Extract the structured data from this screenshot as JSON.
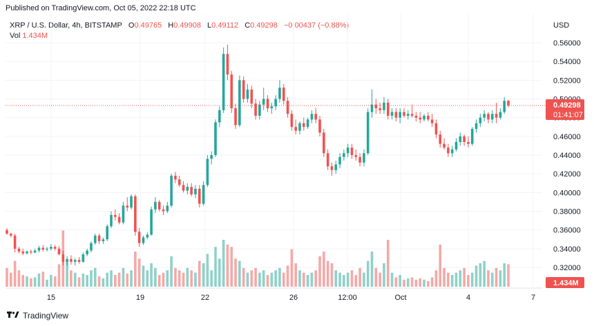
{
  "header": {
    "published": "Published on TradingView.com, Oct 05, 2022 22:18 UTC",
    "currency": "USD"
  },
  "legend": {
    "symbol": "XRP / U.S. Dollar, 4h, BITSTAMP",
    "o_label": "O",
    "o_value": "0.49765",
    "h_label": "H",
    "h_value": "0.49908",
    "l_label": "L",
    "l_value": "0.49112",
    "c_label": "C",
    "c_value": "0.49298",
    "change": "−0.00437 (−0.88%)",
    "vol_label": "Vol",
    "vol_value": "1.434M"
  },
  "badges": {
    "price": "0.49298",
    "countdown": "01:41:07",
    "volume": "1.434M"
  },
  "footer": {
    "brand": "TradingView",
    "logo_icon": "tradingview-logo-icon"
  },
  "colors": {
    "up": "#26a69a",
    "down": "#ef5350",
    "up_vol": "#8fd1c9",
    "down_vol": "#f4a9a7",
    "grid": "#f0f3fa"
  },
  "chart_data": {
    "type": "candlestick",
    "x_tick_labels": [
      "15",
      "19",
      "22",
      "26",
      "12:00",
      "Oct",
      "4",
      "7"
    ],
    "y_tick_labels": [
      "0.56000",
      "0.54000",
      "0.52000",
      "0.50000",
      "0.48000",
      "0.46000",
      "0.44000",
      "0.42000",
      "0.40000",
      "0.38000",
      "0.36000",
      "0.34000",
      "0.32000"
    ],
    "ylim": [
      0.3,
      0.57
    ],
    "last_price": 0.49298,
    "candles": [
      {
        "o": 0.36,
        "h": 0.362,
        "l": 0.355,
        "c": 0.356,
        "v": 0.4
      },
      {
        "o": 0.356,
        "h": 0.357,
        "l": 0.352,
        "c": 0.354,
        "v": 0.3
      },
      {
        "o": 0.354,
        "h": 0.356,
        "l": 0.336,
        "c": 0.34,
        "v": 0.55
      },
      {
        "o": 0.34,
        "h": 0.342,
        "l": 0.335,
        "c": 0.337,
        "v": 0.35
      },
      {
        "o": 0.337,
        "h": 0.34,
        "l": 0.333,
        "c": 0.335,
        "v": 0.25
      },
      {
        "o": 0.335,
        "h": 0.338,
        "l": 0.334,
        "c": 0.337,
        "v": 0.22
      },
      {
        "o": 0.337,
        "h": 0.339,
        "l": 0.334,
        "c": 0.336,
        "v": 0.18
      },
      {
        "o": 0.336,
        "h": 0.34,
        "l": 0.335,
        "c": 0.338,
        "v": 0.2
      },
      {
        "o": 0.338,
        "h": 0.343,
        "l": 0.336,
        "c": 0.341,
        "v": 0.28
      },
      {
        "o": 0.341,
        "h": 0.344,
        "l": 0.337,
        "c": 0.339,
        "v": 0.32
      },
      {
        "o": 0.339,
        "h": 0.342,
        "l": 0.337,
        "c": 0.34,
        "v": 0.15
      },
      {
        "o": 0.34,
        "h": 0.345,
        "l": 0.338,
        "c": 0.342,
        "v": 0.25
      },
      {
        "o": 0.342,
        "h": 0.344,
        "l": 0.338,
        "c": 0.34,
        "v": 0.22
      },
      {
        "o": 0.34,
        "h": 0.343,
        "l": 0.333,
        "c": 0.334,
        "v": 0.48
      },
      {
        "o": 0.334,
        "h": 0.338,
        "l": 0.322,
        "c": 0.326,
        "v": 1.2
      },
      {
        "o": 0.326,
        "h": 0.332,
        "l": 0.322,
        "c": 0.329,
        "v": 0.55
      },
      {
        "o": 0.329,
        "h": 0.333,
        "l": 0.323,
        "c": 0.326,
        "v": 0.35
      },
      {
        "o": 0.326,
        "h": 0.33,
        "l": 0.322,
        "c": 0.328,
        "v": 0.3
      },
      {
        "o": 0.328,
        "h": 0.331,
        "l": 0.324,
        "c": 0.326,
        "v": 0.2
      },
      {
        "o": 0.326,
        "h": 0.336,
        "l": 0.325,
        "c": 0.334,
        "v": 0.28
      },
      {
        "o": 0.334,
        "h": 0.34,
        "l": 0.332,
        "c": 0.338,
        "v": 0.25
      },
      {
        "o": 0.338,
        "h": 0.348,
        "l": 0.336,
        "c": 0.346,
        "v": 0.35
      },
      {
        "o": 0.346,
        "h": 0.356,
        "l": 0.344,
        "c": 0.354,
        "v": 0.4
      },
      {
        "o": 0.354,
        "h": 0.356,
        "l": 0.345,
        "c": 0.348,
        "v": 0.22
      },
      {
        "o": 0.348,
        "h": 0.352,
        "l": 0.345,
        "c": 0.35,
        "v": 0.18
      },
      {
        "o": 0.35,
        "h": 0.366,
        "l": 0.348,
        "c": 0.364,
        "v": 0.3
      },
      {
        "o": 0.364,
        "h": 0.38,
        "l": 0.362,
        "c": 0.376,
        "v": 0.35
      },
      {
        "o": 0.376,
        "h": 0.382,
        "l": 0.37,
        "c": 0.374,
        "v": 0.25
      },
      {
        "o": 0.374,
        "h": 0.378,
        "l": 0.366,
        "c": 0.368,
        "v": 0.3
      },
      {
        "o": 0.368,
        "h": 0.39,
        "l": 0.366,
        "c": 0.386,
        "v": 0.4
      },
      {
        "o": 0.386,
        "h": 0.395,
        "l": 0.38,
        "c": 0.384,
        "v": 0.28
      },
      {
        "o": 0.384,
        "h": 0.398,
        "l": 0.382,
        "c": 0.396,
        "v": 0.35
      },
      {
        "o": 0.396,
        "h": 0.398,
        "l": 0.354,
        "c": 0.358,
        "v": 0.75
      },
      {
        "o": 0.358,
        "h": 0.362,
        "l": 0.342,
        "c": 0.346,
        "v": 0.6
      },
      {
        "o": 0.346,
        "h": 0.354,
        "l": 0.344,
        "c": 0.352,
        "v": 0.45
      },
      {
        "o": 0.352,
        "h": 0.358,
        "l": 0.35,
        "c": 0.355,
        "v": 0.35
      },
      {
        "o": 0.355,
        "h": 0.385,
        "l": 0.354,
        "c": 0.382,
        "v": 0.5
      },
      {
        "o": 0.382,
        "h": 0.395,
        "l": 0.378,
        "c": 0.39,
        "v": 0.4
      },
      {
        "o": 0.39,
        "h": 0.392,
        "l": 0.38,
        "c": 0.382,
        "v": 0.25
      },
      {
        "o": 0.382,
        "h": 0.386,
        "l": 0.376,
        "c": 0.38,
        "v": 0.3
      },
      {
        "o": 0.38,
        "h": 0.39,
        "l": 0.378,
        "c": 0.386,
        "v": 0.35
      },
      {
        "o": 0.386,
        "h": 0.42,
        "l": 0.384,
        "c": 0.418,
        "v": 0.65
      },
      {
        "o": 0.418,
        "h": 0.422,
        "l": 0.41,
        "c": 0.414,
        "v": 0.4
      },
      {
        "o": 0.414,
        "h": 0.418,
        "l": 0.406,
        "c": 0.408,
        "v": 0.35
      },
      {
        "o": 0.408,
        "h": 0.412,
        "l": 0.4,
        "c": 0.402,
        "v": 0.3
      },
      {
        "o": 0.402,
        "h": 0.41,
        "l": 0.398,
        "c": 0.406,
        "v": 0.4
      },
      {
        "o": 0.406,
        "h": 0.41,
        "l": 0.396,
        "c": 0.398,
        "v": 0.35
      },
      {
        "o": 0.398,
        "h": 0.408,
        "l": 0.394,
        "c": 0.404,
        "v": 0.3
      },
      {
        "o": 0.404,
        "h": 0.408,
        "l": 0.384,
        "c": 0.388,
        "v": 0.55
      },
      {
        "o": 0.388,
        "h": 0.412,
        "l": 0.386,
        "c": 0.408,
        "v": 0.5
      },
      {
        "o": 0.408,
        "h": 0.44,
        "l": 0.406,
        "c": 0.436,
        "v": 0.7
      },
      {
        "o": 0.436,
        "h": 0.444,
        "l": 0.43,
        "c": 0.44,
        "v": 0.35
      },
      {
        "o": 0.44,
        "h": 0.478,
        "l": 0.438,
        "c": 0.475,
        "v": 0.85
      },
      {
        "o": 0.475,
        "h": 0.492,
        "l": 0.47,
        "c": 0.488,
        "v": 0.6
      },
      {
        "o": 0.488,
        "h": 0.555,
        "l": 0.485,
        "c": 0.548,
        "v": 1.0
      },
      {
        "o": 0.548,
        "h": 0.558,
        "l": 0.52,
        "c": 0.526,
        "v": 0.9
      },
      {
        "o": 0.526,
        "h": 0.53,
        "l": 0.485,
        "c": 0.49,
        "v": 0.85
      },
      {
        "o": 0.49,
        "h": 0.495,
        "l": 0.468,
        "c": 0.472,
        "v": 0.6
      },
      {
        "o": 0.472,
        "h": 0.525,
        "l": 0.47,
        "c": 0.52,
        "v": 0.55
      },
      {
        "o": 0.52,
        "h": 0.524,
        "l": 0.496,
        "c": 0.5,
        "v": 0.4
      },
      {
        "o": 0.5,
        "h": 0.516,
        "l": 0.496,
        "c": 0.51,
        "v": 0.3
      },
      {
        "o": 0.51,
        "h": 0.514,
        "l": 0.49,
        "c": 0.495,
        "v": 0.35
      },
      {
        "o": 0.495,
        "h": 0.5,
        "l": 0.478,
        "c": 0.482,
        "v": 0.4
      },
      {
        "o": 0.482,
        "h": 0.498,
        "l": 0.478,
        "c": 0.494,
        "v": 0.3
      },
      {
        "o": 0.494,
        "h": 0.512,
        "l": 0.488,
        "c": 0.5,
        "v": 0.35
      },
      {
        "o": 0.5,
        "h": 0.504,
        "l": 0.486,
        "c": 0.49,
        "v": 0.25
      },
      {
        "o": 0.49,
        "h": 0.496,
        "l": 0.484,
        "c": 0.492,
        "v": 0.3
      },
      {
        "o": 0.492,
        "h": 0.504,
        "l": 0.488,
        "c": 0.5,
        "v": 0.35
      },
      {
        "o": 0.5,
        "h": 0.52,
        "l": 0.496,
        "c": 0.512,
        "v": 0.4
      },
      {
        "o": 0.512,
        "h": 0.516,
        "l": 0.494,
        "c": 0.498,
        "v": 0.3
      },
      {
        "o": 0.498,
        "h": 0.502,
        "l": 0.48,
        "c": 0.484,
        "v": 0.45
      },
      {
        "o": 0.484,
        "h": 0.488,
        "l": 0.466,
        "c": 0.47,
        "v": 0.8
      },
      {
        "o": 0.47,
        "h": 0.478,
        "l": 0.462,
        "c": 0.466,
        "v": 0.5
      },
      {
        "o": 0.466,
        "h": 0.476,
        "l": 0.462,
        "c": 0.474,
        "v": 0.35
      },
      {
        "o": 0.474,
        "h": 0.48,
        "l": 0.466,
        "c": 0.47,
        "v": 0.3
      },
      {
        "o": 0.47,
        "h": 0.48,
        "l": 0.468,
        "c": 0.478,
        "v": 0.25
      },
      {
        "o": 0.478,
        "h": 0.488,
        "l": 0.474,
        "c": 0.484,
        "v": 0.3
      },
      {
        "o": 0.484,
        "h": 0.49,
        "l": 0.474,
        "c": 0.478,
        "v": 0.35
      },
      {
        "o": 0.478,
        "h": 0.482,
        "l": 0.46,
        "c": 0.464,
        "v": 0.65
      },
      {
        "o": 0.464,
        "h": 0.468,
        "l": 0.438,
        "c": 0.442,
        "v": 0.75
      },
      {
        "o": 0.442,
        "h": 0.446,
        "l": 0.424,
        "c": 0.428,
        "v": 0.55
      },
      {
        "o": 0.428,
        "h": 0.432,
        "l": 0.418,
        "c": 0.424,
        "v": 0.5
      },
      {
        "o": 0.424,
        "h": 0.434,
        "l": 0.42,
        "c": 0.43,
        "v": 0.35
      },
      {
        "o": 0.43,
        "h": 0.442,
        "l": 0.426,
        "c": 0.438,
        "v": 0.3
      },
      {
        "o": 0.438,
        "h": 0.446,
        "l": 0.434,
        "c": 0.442,
        "v": 0.25
      },
      {
        "o": 0.442,
        "h": 0.452,
        "l": 0.438,
        "c": 0.448,
        "v": 0.3
      },
      {
        "o": 0.448,
        "h": 0.452,
        "l": 0.436,
        "c": 0.44,
        "v": 0.35
      },
      {
        "o": 0.44,
        "h": 0.446,
        "l": 0.434,
        "c": 0.438,
        "v": 0.25
      },
      {
        "o": 0.438,
        "h": 0.442,
        "l": 0.428,
        "c": 0.432,
        "v": 0.4
      },
      {
        "o": 0.432,
        "h": 0.446,
        "l": 0.428,
        "c": 0.442,
        "v": 0.3
      },
      {
        "o": 0.442,
        "h": 0.49,
        "l": 0.44,
        "c": 0.486,
        "v": 0.55
      },
      {
        "o": 0.486,
        "h": 0.51,
        "l": 0.48,
        "c": 0.494,
        "v": 0.75
      },
      {
        "o": 0.494,
        "h": 0.5,
        "l": 0.484,
        "c": 0.49,
        "v": 0.4
      },
      {
        "o": 0.49,
        "h": 0.496,
        "l": 0.484,
        "c": 0.488,
        "v": 0.3
      },
      {
        "o": 0.488,
        "h": 0.502,
        "l": 0.484,
        "c": 0.496,
        "v": 0.5
      },
      {
        "o": 0.496,
        "h": 0.5,
        "l": 0.478,
        "c": 0.482,
        "v": 1.0
      },
      {
        "o": 0.482,
        "h": 0.49,
        "l": 0.478,
        "c": 0.486,
        "v": 0.3
      },
      {
        "o": 0.486,
        "h": 0.49,
        "l": 0.476,
        "c": 0.48,
        "v": 0.2
      },
      {
        "o": 0.48,
        "h": 0.49,
        "l": 0.474,
        "c": 0.486,
        "v": 0.25
      },
      {
        "o": 0.486,
        "h": 0.49,
        "l": 0.48,
        "c": 0.482,
        "v": 0.15
      },
      {
        "o": 0.482,
        "h": 0.488,
        "l": 0.478,
        "c": 0.484,
        "v": 0.18
      },
      {
        "o": 0.484,
        "h": 0.494,
        "l": 0.48,
        "c": 0.482,
        "v": 0.2
      },
      {
        "o": 0.482,
        "h": 0.486,
        "l": 0.476,
        "c": 0.48,
        "v": 0.15
      },
      {
        "o": 0.48,
        "h": 0.486,
        "l": 0.474,
        "c": 0.478,
        "v": 0.18
      },
      {
        "o": 0.478,
        "h": 0.484,
        "l": 0.476,
        "c": 0.482,
        "v": 0.15
      },
      {
        "o": 0.482,
        "h": 0.486,
        "l": 0.476,
        "c": 0.478,
        "v": 0.12
      },
      {
        "o": 0.478,
        "h": 0.484,
        "l": 0.47,
        "c": 0.474,
        "v": 0.2
      },
      {
        "o": 0.474,
        "h": 0.478,
        "l": 0.458,
        "c": 0.462,
        "v": 0.35
      },
      {
        "o": 0.462,
        "h": 0.466,
        "l": 0.448,
        "c": 0.452,
        "v": 0.9
      },
      {
        "o": 0.452,
        "h": 0.458,
        "l": 0.446,
        "c": 0.448,
        "v": 0.4
      },
      {
        "o": 0.448,
        "h": 0.452,
        "l": 0.438,
        "c": 0.442,
        "v": 0.3
      },
      {
        "o": 0.442,
        "h": 0.45,
        "l": 0.438,
        "c": 0.446,
        "v": 0.25
      },
      {
        "o": 0.446,
        "h": 0.458,
        "l": 0.444,
        "c": 0.454,
        "v": 0.3
      },
      {
        "o": 0.454,
        "h": 0.464,
        "l": 0.45,
        "c": 0.46,
        "v": 0.35
      },
      {
        "o": 0.46,
        "h": 0.462,
        "l": 0.45,
        "c": 0.454,
        "v": 0.4
      },
      {
        "o": 0.454,
        "h": 0.46,
        "l": 0.448,
        "c": 0.452,
        "v": 0.25
      },
      {
        "o": 0.452,
        "h": 0.47,
        "l": 0.45,
        "c": 0.468,
        "v": 0.3
      },
      {
        "o": 0.468,
        "h": 0.478,
        "l": 0.464,
        "c": 0.474,
        "v": 0.45
      },
      {
        "o": 0.474,
        "h": 0.484,
        "l": 0.47,
        "c": 0.48,
        "v": 0.5
      },
      {
        "o": 0.48,
        "h": 0.488,
        "l": 0.476,
        "c": 0.484,
        "v": 0.55
      },
      {
        "o": 0.484,
        "h": 0.486,
        "l": 0.474,
        "c": 0.478,
        "v": 0.35
      },
      {
        "o": 0.478,
        "h": 0.488,
        "l": 0.474,
        "c": 0.484,
        "v": 0.3
      },
      {
        "o": 0.484,
        "h": 0.496,
        "l": 0.474,
        "c": 0.48,
        "v": 0.4
      },
      {
        "o": 0.48,
        "h": 0.49,
        "l": 0.478,
        "c": 0.486,
        "v": 0.35
      },
      {
        "o": 0.486,
        "h": 0.502,
        "l": 0.484,
        "c": 0.498,
        "v": 0.5
      },
      {
        "o": 0.498,
        "h": 0.499,
        "l": 0.491,
        "c": 0.493,
        "v": 0.48
      }
    ]
  }
}
